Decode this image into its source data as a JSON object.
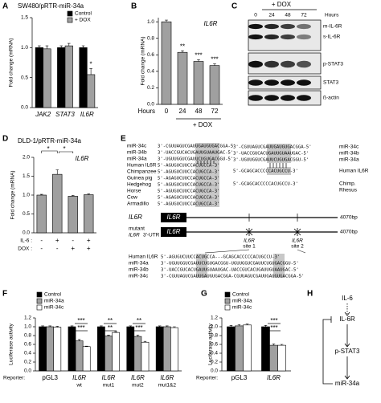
{
  "chart_data": [
    {
      "type": "bar",
      "title": "SW480/pRTR-miR-34a",
      "ylabel": "Fold change (mRNA)",
      "categories": [
        "JAK2",
        "STAT3",
        "IL6R"
      ],
      "series": [
        {
          "name": "Control",
          "color": "#000000",
          "values": [
            1.0,
            1.0,
            1.0
          ],
          "errors": [
            0.03,
            0.03,
            0.03
          ]
        },
        {
          "name": "+ DOX",
          "color": "#a0a0a0",
          "values": [
            0.98,
            1.03,
            0.55
          ],
          "errors": [
            0.05,
            0.04,
            0.1
          ]
        }
      ],
      "ylim": [
        0,
        1.5
      ],
      "yticks": [
        {
          "value": 0,
          "label": "0.0"
        },
        0.5,
        {
          "value": 1,
          "label": "1.0"
        },
        1.5
      ],
      "annotations": [
        "*"
      ]
    },
    {
      "type": "bar",
      "subtitle": "IL6R",
      "ylabel": "Fold change (mRNA)",
      "categories": [
        "0",
        "24",
        "48",
        "72"
      ],
      "xlabel": "Hours",
      "xlabel2": "+ DOX",
      "series": [
        {
          "color": "#a0a0a0",
          "values": [
            1.0,
            0.63,
            0.52,
            0.47
          ],
          "errors": [
            0.02,
            0.02,
            0.02,
            0.02
          ]
        }
      ],
      "ylim": [
        0,
        1.05
      ],
      "yticks": [
        {
          "value": 0,
          "label": "0.0"
        },
        0.2,
        0.4,
        0.6,
        0.8,
        {
          "value": 1,
          "label": "1.0"
        }
      ],
      "annotations": [
        "**",
        "***",
        "***"
      ]
    },
    {
      "type": "bar",
      "title": "DLD-1/pRTR-miR-34a",
      "subtitle": "IL6R",
      "ylabel": "Fold change (mRNA)",
      "conditions": [
        {
          "label": "IL-6 :",
          "values": [
            "-",
            "+",
            "-",
            "+"
          ]
        },
        {
          "label": "DOX :",
          "values": [
            "-",
            "-",
            "+",
            "+"
          ]
        }
      ],
      "series": [
        {
          "color": "#a0a0a0",
          "values": [
            1.0,
            1.55,
            0.97,
            1.01
          ],
          "errors": [
            0.02,
            0.12,
            0.02,
            0.02
          ]
        }
      ],
      "ylim": [
        0,
        2
      ],
      "yticks": [
        {
          "value": 0,
          "label": "0.0"
        },
        0.5,
        {
          "value": 1,
          "label": "1.0"
        },
        1.5,
        {
          "value": 2,
          "label": "2.0"
        }
      ],
      "annotations": [
        "*",
        "*"
      ]
    },
    {
      "type": "bar",
      "ylabel": "Luciferase activity",
      "xlabel": "Reporter:",
      "categories": [
        "pGL3",
        "IL6R",
        "IL6R",
        "IL6R",
        "IL6R"
      ],
      "category_sublabels": [
        null,
        "wt",
        "mut1",
        "mut2",
        "mut1&2"
      ],
      "series": [
        {
          "name": "Control",
          "color": "#000000",
          "values": [
            1.0,
            1.0,
            1.0,
            1.0,
            1.0
          ],
          "errors": [
            0.02,
            0.02,
            0.02,
            0.02,
            0.02
          ]
        },
        {
          "name": "miR-34a",
          "color": "#a0a0a0",
          "values": [
            1.0,
            0.68,
            0.79,
            0.78,
            1.0
          ],
          "errors": [
            0.02,
            0.03,
            0.02,
            0.03,
            0.02
          ]
        },
        {
          "name": "miR-34c",
          "color": "#ffffff",
          "values": [
            0.99,
            0.55,
            0.87,
            0.65,
            0.98
          ],
          "errors": [
            0.02,
            0.01,
            0.02,
            0.02,
            0.02
          ]
        }
      ],
      "ylim": [
        0,
        1.2
      ],
      "yticks": [
        {
          "value": 0,
          "label": "0.0"
        },
        0.2,
        0.4,
        0.6,
        0.8,
        {
          "value": 1,
          "label": "1.0"
        },
        1.2
      ],
      "annotations": [
        "***",
        "***",
        "**",
        "**",
        "**",
        "***"
      ]
    },
    {
      "type": "bar",
      "ylabel": "Luciferase activity",
      "xlabel": "Reporter:",
      "categories": [
        "pGL3",
        "IL6R"
      ],
      "series": [
        {
          "name": "Control",
          "color": "#000000",
          "values": [
            1.0,
            1.0
          ],
          "errors": [
            0.03,
            0.03
          ]
        },
        {
          "name": "miR-34a",
          "color": "#a0a0a0",
          "values": [
            1.02,
            0.58
          ],
          "errors": [
            0.03,
            0.03
          ]
        },
        {
          "name": "miR-34c",
          "color": "#ffffff",
          "values": [
            1.04,
            0.58
          ],
          "errors": [
            0.02,
            0.02
          ]
        }
      ],
      "ylim": [
        0,
        1.2
      ],
      "yticks": [
        {
          "value": 0,
          "label": "0.0"
        },
        0.2,
        0.4,
        0.6,
        0.8,
        {
          "value": 1,
          "label": "1.0"
        },
        1.2
      ],
      "annotations": [
        "***",
        "***"
      ]
    }
  ],
  "panel_labels": [
    "A",
    "B",
    "C",
    "D",
    "E",
    "F",
    "G",
    "H"
  ],
  "blot": {
    "header": "+ DOX",
    "hours_label": "Hours",
    "lanes": [
      "0",
      "24",
      "48",
      "72"
    ],
    "bands": [
      "m-IL-6R",
      "s-IL-6R",
      "p-STAT3",
      "STAT3",
      "ß-actin"
    ]
  },
  "sequences": {
    "left": [
      {
        "name": "miR-34c",
        "seq": "3'-CGUUAGUCGAUUGAUGUGACGGA-5'"
      },
      {
        "name": "miR-34b",
        "seq": "3'-UACCGUCACUGAUUGUAAUGAC-5'"
      },
      {
        "name": "miR-34a",
        "seq": "3'-UGUUGGUCGAUUCUGUGACGGU-5'"
      },
      {
        "name": "Human IL6R",
        "seq": "5'-AGUGUCUUCCACUGCCA-3'"
      },
      {
        "name": "Chimpanzee",
        "seq": "5'-AGUGUCUUCCACUGCCA-3'"
      },
      {
        "name": "Guinea pig",
        "seq": "5'-AGAGUCUUCCACUGCCA-3'"
      },
      {
        "name": "Hedgehog",
        "seq": "5'-AGUGUCUUCCACUGCCA-3'"
      },
      {
        "name": "Horse",
        "seq": "5'-AGUGUCUUCCACUGCCA-3'"
      },
      {
        "name": "Cow",
        "seq": "5'-AGAGUCUUCCACUGCCA-3'"
      },
      {
        "name": "Armadillo",
        "seq": "5'-AGUGUCUUCCACUGCCA-3'"
      }
    ],
    "right": [
      {
        "name": "miR-34c",
        "seq": "3'-CGUUAGUCGAUUGAUGUGACGGA-5'"
      },
      {
        "name": "miR-34b",
        "seq": "3'-UACCGUCACUGAUUGUAAUGAC-5'"
      },
      {
        "name": "miR-34a",
        "seq": "3'-UGUUGGUCGAUUCUGUGACGGU-5'"
      },
      {
        "name": "Human IL6R",
        "seq": "5'-GCAGCACCCCCACUGCCU-3'"
      },
      {
        "name": "Chimp.",
        "seq": "5'-GCAGCACCCCCACUGCCU-3'"
      },
      {
        "name": "Rhesus"
      }
    ],
    "bottom": [
      {
        "name": "Human IL6R",
        "seq": "5'-AGUGUCUUCCACUGCCA---GCAGCACCCCCACUGCCU-3'"
      },
      {
        "name": "miR-34a",
        "seq": "3'-UGUUGGUCGAUUCUGUGACGGU-UGUUGGUCGAUUCUGUGACGGU-5'"
      },
      {
        "name": "miR-34b",
        "seq": "3'-UACCGUCACUGAUUGUAAUGAC-UACCGUCACUGAUUGUAAUGAC-5'"
      },
      {
        "name": "miR-34c",
        "seq": "3'-CGUUAGUCGAUUGAUGUGACGGA-CGUUAGUCGAUUGAUGUGACGGA-5'"
      }
    ]
  },
  "utr_diagram": {
    "gene": "IL6R",
    "box": "IL6R",
    "length": "4070bp",
    "mutant": "mutant",
    "mutant_gene": "IL6R",
    "mutant_box": "IL6R",
    "mutant_length": "4070bp",
    "utr": "3'-UTR",
    "sites": [
      {
        "gene": "IL6R",
        "label": "site 1"
      },
      {
        "gene": "IL6R",
        "label": "site 2"
      }
    ]
  },
  "pathway": {
    "nodes": [
      "IL-6",
      "IL-6R",
      "p-STAT3",
      "miR-34a"
    ]
  }
}
